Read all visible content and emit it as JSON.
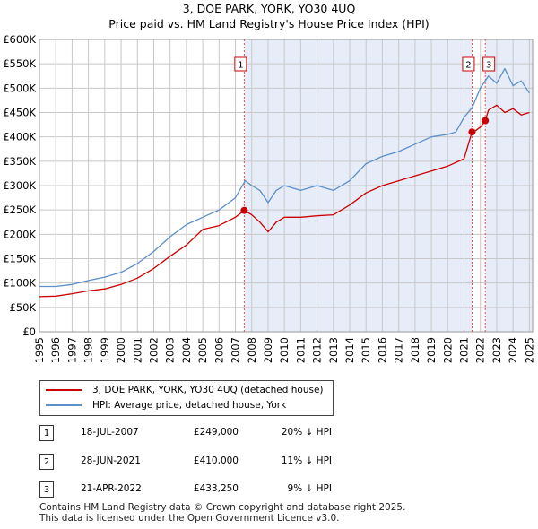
{
  "title_line1": "3, DOE PARK, YORK, YO30 4UQ",
  "title_line2": "Price paid vs. HM Land Registry's House Price Index (HPI)",
  "colors": {
    "property": "#cc0000",
    "hpi": "#5b8fc9",
    "shade": "#e6ecf8",
    "marker_line": "#e05050",
    "grid": "#c8c8c8"
  },
  "legend": {
    "property_label": "3, DOE PARK, YORK, YO30 4UQ (detached house)",
    "hpi_label": "HPI: Average price, detached house, York"
  },
  "transactions": [
    {
      "num": "1",
      "date": "18-JUL-2007",
      "price": "£249,000",
      "hpi": "20% ↓ HPI"
    },
    {
      "num": "2",
      "date": "28-JUN-2021",
      "price": "£410,000",
      "hpi": "11% ↓ HPI"
    },
    {
      "num": "3",
      "date": "21-APR-2022",
      "price": "£433,250",
      "hpi": "9% ↓ HPI"
    }
  ],
  "footer_line1": "Contains HM Land Registry data © Crown copyright and database right 2025.",
  "footer_line2": "This data is licensed under the Open Government Licence v3.0.",
  "chart_data": {
    "type": "line",
    "title": "Price paid vs. HM Land Registry's House Price Index (HPI)",
    "xlim": [
      1995,
      2025.2
    ],
    "ylim": [
      0,
      600000
    ],
    "x_ticks": [
      1995,
      1996,
      1997,
      1998,
      1999,
      2000,
      2001,
      2002,
      2003,
      2004,
      2005,
      2006,
      2007,
      2008,
      2009,
      2010,
      2011,
      2012,
      2013,
      2014,
      2015,
      2016,
      2017,
      2018,
      2019,
      2020,
      2021,
      2022,
      2023,
      2024,
      2025
    ],
    "y_ticks": [
      {
        "value": 0,
        "label": "£0"
      },
      {
        "value": 50000,
        "label": "£50K"
      },
      {
        "value": 100000,
        "label": "£100K"
      },
      {
        "value": 150000,
        "label": "£150K"
      },
      {
        "value": 200000,
        "label": "£200K"
      },
      {
        "value": 250000,
        "label": "£250K"
      },
      {
        "value": 300000,
        "label": "£300K"
      },
      {
        "value": 350000,
        "label": "£350K"
      },
      {
        "value": 400000,
        "label": "£400K"
      },
      {
        "value": 450000,
        "label": "£450K"
      },
      {
        "value": 500000,
        "label": "£500K"
      },
      {
        "value": 550000,
        "label": "£550K"
      },
      {
        "value": 600000,
        "label": "£600K"
      }
    ],
    "shaded_ranges": [
      [
        2007.54,
        2021.49
      ],
      [
        2022.3,
        2025.2
      ]
    ],
    "sale_markers": [
      {
        "label": "1",
        "x": 2007.54,
        "y": 249000
      },
      {
        "label": "2",
        "x": 2021.49,
        "y": 410000
      },
      {
        "label": "3",
        "x": 2022.3,
        "y": 433250
      }
    ],
    "series": [
      {
        "name": "HPI: Average price, detached house, York",
        "x": [
          1995,
          1996,
          1997,
          1998,
          1999,
          2000,
          2001,
          2002,
          2003,
          2004,
          2005,
          2006,
          2007,
          2007.6,
          2008,
          2008.5,
          2009,
          2009.5,
          2010,
          2011,
          2012,
          2013,
          2014,
          2015,
          2016,
          2017,
          2018,
          2019,
          2020,
          2020.5,
          2021,
          2021.5,
          2022,
          2022.5,
          2023,
          2023.5,
          2024,
          2024.5,
          2025
        ],
        "values": [
          93000,
          93000,
          97000,
          105000,
          112000,
          122000,
          140000,
          165000,
          195000,
          220000,
          235000,
          250000,
          275000,
          310000,
          300000,
          290000,
          265000,
          290000,
          300000,
          290000,
          300000,
          290000,
          310000,
          345000,
          360000,
          370000,
          385000,
          400000,
          405000,
          410000,
          440000,
          460000,
          500000,
          525000,
          510000,
          540000,
          505000,
          515000,
          490000
        ]
      },
      {
        "name": "3, DOE PARK, YORK, YO30 4UQ (detached house)",
        "x": [
          1995,
          1996,
          1997,
          1998,
          1999,
          2000,
          2001,
          2002,
          2003,
          2004,
          2005,
          2006,
          2007,
          2007.54,
          2008,
          2008.5,
          2009,
          2009.5,
          2010,
          2011,
          2012,
          2013,
          2014,
          2015,
          2016,
          2017,
          2018,
          2019,
          2020,
          2021,
          2021.49,
          2021.6,
          2022,
          2022.3,
          2022.5,
          2023,
          2023.5,
          2024,
          2024.5,
          2025
        ],
        "values": [
          72000,
          73000,
          78000,
          84000,
          88000,
          97000,
          110000,
          130000,
          155000,
          178000,
          210000,
          218000,
          235000,
          249000,
          240000,
          225000,
          205000,
          225000,
          235000,
          235000,
          238000,
          240000,
          260000,
          285000,
          300000,
          310000,
          320000,
          330000,
          340000,
          355000,
          410000,
          410000,
          420000,
          433250,
          455000,
          465000,
          450000,
          458000,
          445000,
          450000
        ]
      }
    ]
  }
}
